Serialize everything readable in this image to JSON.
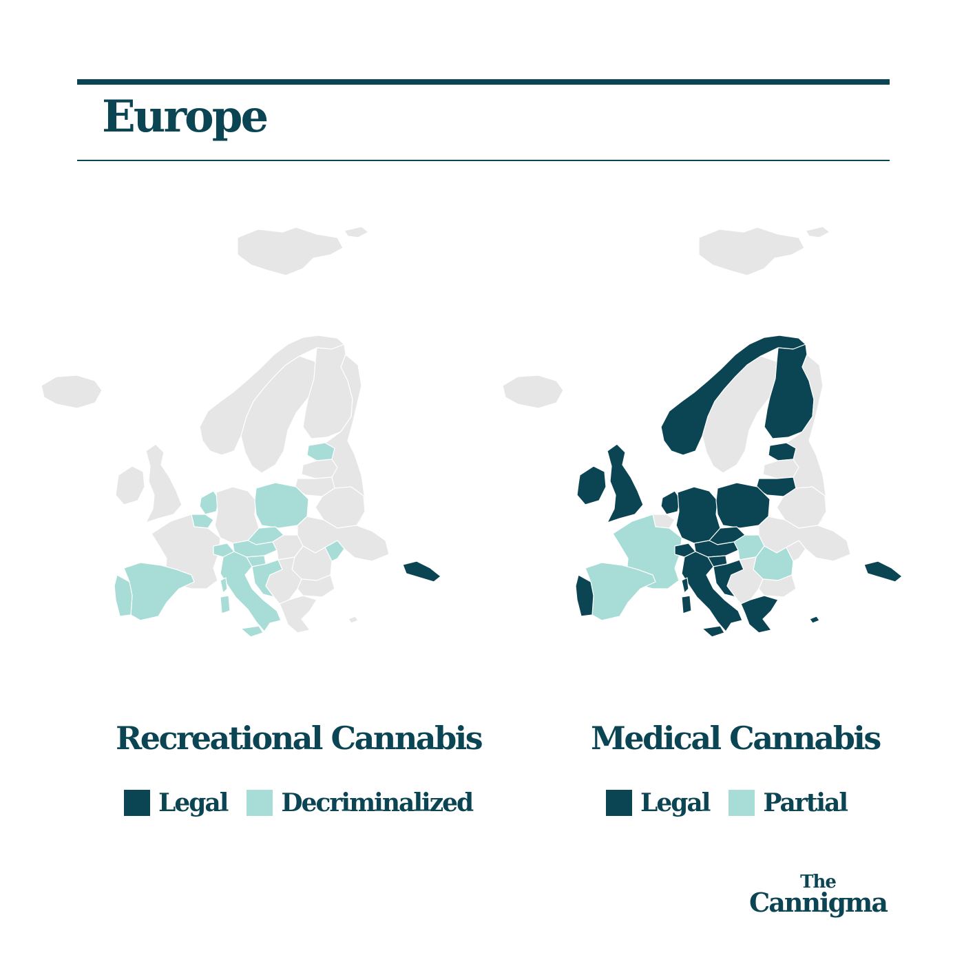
{
  "title": "Europe",
  "colors": {
    "legal": "#0b4553",
    "partial": "#a7ddd6",
    "none": "#e6e6e6",
    "text": "#0b4553"
  },
  "recreational": {
    "heading": "Recreational Cannabis",
    "legend": [
      {
        "label": "Legal",
        "status": "legal"
      },
      {
        "label": "Decriminalized",
        "status": "partial"
      }
    ],
    "regions": {
      "iceland": "none",
      "svalbard": "none",
      "novaya-zemlya": "none",
      "norway": "none",
      "sweden": "none",
      "finland": "none",
      "estonia": "partial",
      "latvia": "none",
      "lithuania": "none",
      "ireland": "none",
      "united-kingdom": "none",
      "netherlands": "partial",
      "belgium": "partial",
      "france": "none",
      "germany": "none",
      "poland": "partial",
      "belarus": "none",
      "ukraine": "none",
      "czechia": "partial",
      "austria": "partial",
      "switzerland": "partial",
      "italy": "partial",
      "slovenia": "partial",
      "croatia": "partial",
      "hungary": "none",
      "romania": "none",
      "moldova": "partial",
      "bulgaria": "none",
      "greece": "none",
      "spain": "partial",
      "portugal": "partial",
      "balkans": "none",
      "corsica-sardinia": "partial",
      "sicily": "partial",
      "georgia": "legal",
      "cyprus": "none",
      "russia": "none"
    }
  },
  "medical": {
    "heading": "Medical Cannabis",
    "legend": [
      {
        "label": "Legal",
        "status": "legal"
      },
      {
        "label": "Partial",
        "status": "partial"
      }
    ],
    "regions": {
      "iceland": "none",
      "svalbard": "none",
      "novaya-zemlya": "none",
      "norway": "legal",
      "sweden": "none",
      "finland": "legal",
      "estonia": "legal",
      "latvia": "none",
      "lithuania": "legal",
      "ireland": "legal",
      "united-kingdom": "legal",
      "netherlands": "legal",
      "belgium": "none",
      "france": "partial",
      "germany": "legal",
      "poland": "legal",
      "belarus": "none",
      "ukraine": "none",
      "czechia": "legal",
      "austria": "legal",
      "switzerland": "legal",
      "italy": "legal",
      "slovenia": "legal",
      "croatia": "legal",
      "hungary": "partial",
      "romania": "partial",
      "moldova": "none",
      "bulgaria": "none",
      "greece": "legal",
      "spain": "partial",
      "portugal": "legal",
      "balkans": "none",
      "corsica-sardinia": "legal",
      "sicily": "legal",
      "georgia": "legal",
      "cyprus": "legal",
      "russia": "none"
    }
  },
  "logo": {
    "line1": "The",
    "line2": "Cannigma"
  }
}
